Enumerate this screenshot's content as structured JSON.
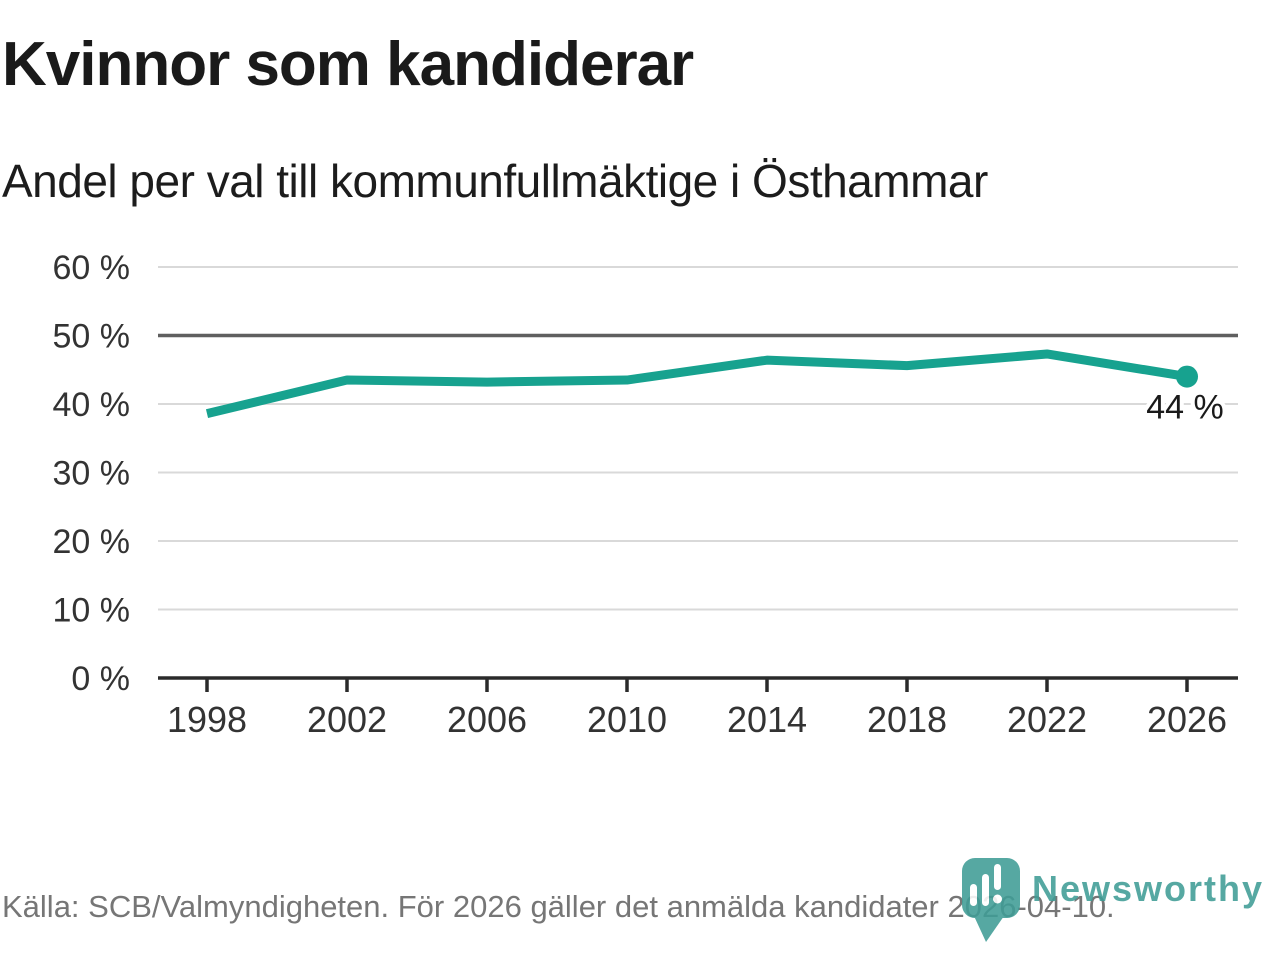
{
  "chart_data": {
    "type": "line",
    "title": "Kvinnor som kandiderar",
    "subtitle": "Andel per val till kommunfullmäktige i Östhammar",
    "x": [
      1998,
      2002,
      2006,
      2010,
      2014,
      2018,
      2022,
      2026
    ],
    "x_tick_labels": [
      "1998",
      "2002",
      "2006",
      "2010",
      "2014",
      "2018",
      "2022",
      "2026"
    ],
    "series": [
      {
        "values": [
          38.6,
          43.5,
          43.2,
          43.5,
          46.4,
          45.6,
          47.3,
          44.0
        ]
      }
    ],
    "ylim": [
      0,
      60
    ],
    "y_tick_step": 10,
    "y_tick_labels": [
      "0 %",
      "10 %",
      "20 %",
      "30 %",
      "40 %",
      "50 %",
      "60 %"
    ],
    "reference_line_y": 50,
    "end_point_label": "44 %",
    "grid": "horizontal",
    "legend": "none",
    "colors": {
      "line": "#17a28f",
      "grid": "#d9d9d9",
      "reference": "#5f5f5f",
      "axis": "#2b2b2b",
      "tick_text": "#333333",
      "end_label": "#1a1a1a"
    }
  },
  "footer": {
    "source": "Källa: SCB/Valmyndigheten. För 2026 gäller det anmälda kandidater 2026-04-10."
  },
  "logo": {
    "text": "Newsworthy",
    "color": "#3f9d96"
  }
}
